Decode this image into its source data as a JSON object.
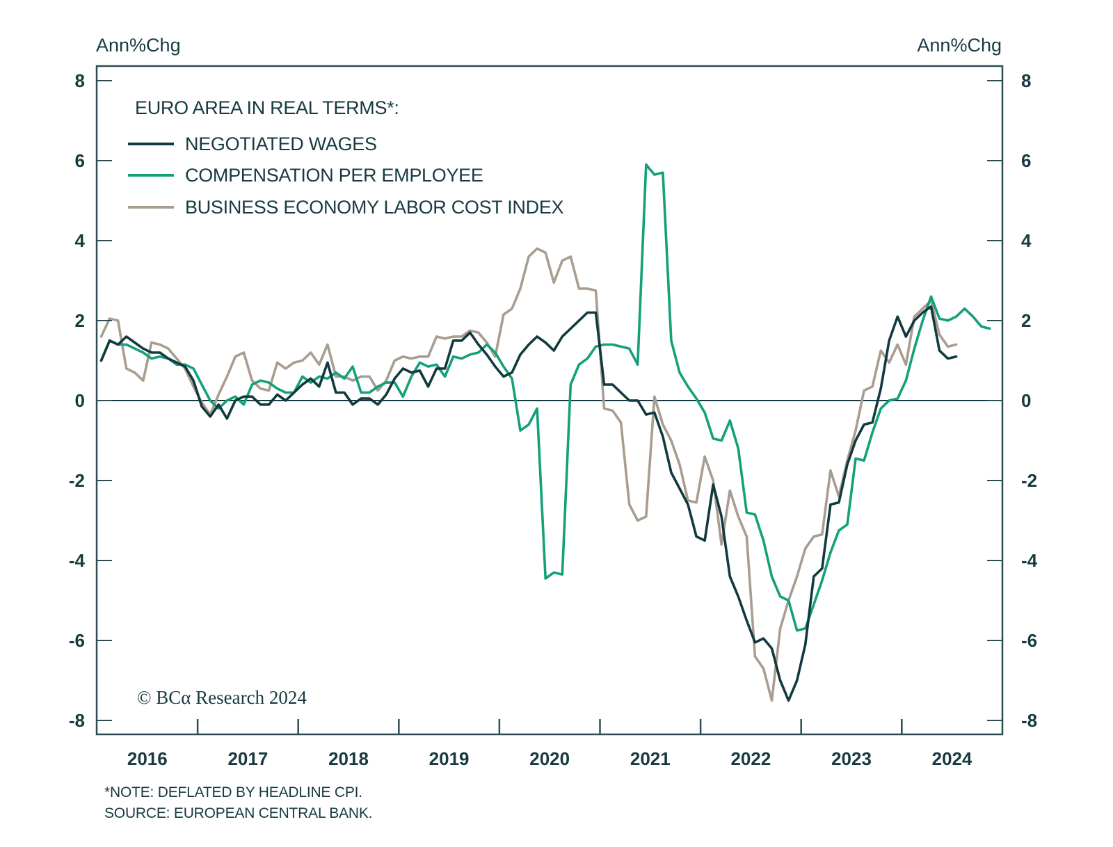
{
  "chart_data": {
    "type": "line",
    "title": "EURO AREA IN REAL TERMS*:",
    "ylabel_left": "Ann%Chg",
    "ylabel_right": "Ann%Chg",
    "xlabel": "",
    "ylim": [
      -8,
      8
    ],
    "yticks": [
      -8,
      -6,
      -4,
      -2,
      0,
      2,
      4,
      6,
      8
    ],
    "x_start": "2016-01",
    "x_frequency": "monthly",
    "xlim_years": [
      2016,
      2025
    ],
    "xtick_labels": [
      "2016",
      "2017",
      "2018",
      "2019",
      "2020",
      "2021",
      "2022",
      "2023",
      "2024"
    ],
    "zero_line": true,
    "grid": false,
    "legend_position": "top-left",
    "series": [
      {
        "name": "NEGOTIATED WAGES",
        "color": "#12393f",
        "values": [
          1.0,
          1.5,
          1.4,
          1.6,
          1.45,
          1.3,
          1.2,
          1.2,
          1.05,
          0.95,
          0.85,
          0.5,
          -0.15,
          -0.4,
          -0.1,
          -0.45,
          0.0,
          0.1,
          0.1,
          -0.1,
          -0.1,
          0.15,
          0.0,
          0.2,
          0.4,
          0.55,
          0.35,
          0.95,
          0.2,
          0.2,
          -0.1,
          0.05,
          0.05,
          -0.1,
          0.15,
          0.55,
          0.8,
          0.7,
          0.75,
          0.35,
          0.8,
          0.8,
          1.5,
          1.5,
          1.7,
          1.4,
          1.15,
          0.85,
          0.6,
          0.7,
          1.15,
          1.4,
          1.6,
          1.45,
          1.25,
          1.6,
          1.8,
          2.0,
          2.2,
          2.2,
          0.4,
          0.4,
          0.2,
          0.0,
          0.0,
          -0.35,
          -0.3,
          -0.9,
          -1.8,
          -2.2,
          -2.6,
          -3.4,
          -3.5,
          -2.1,
          -2.9,
          -4.4,
          -4.9,
          -5.5,
          -6.05,
          -5.95,
          -6.2,
          -7.0,
          -7.5,
          -7.0,
          -6.1,
          -4.4,
          -4.2,
          -2.6,
          -2.55,
          -1.6,
          -1.0,
          -0.6,
          -0.55,
          0.3,
          1.5,
          2.1,
          1.6,
          2.0,
          2.2,
          2.35,
          1.25,
          1.05,
          1.1
        ]
      },
      {
        "name": "COMPENSATION PER EMPLOYEE",
        "color": "#14a07a",
        "values": [
          1.0,
          1.5,
          1.4,
          1.4,
          1.3,
          1.2,
          1.05,
          1.1,
          1.05,
          0.9,
          0.9,
          0.8,
          0.4,
          0.0,
          -0.2,
          0.0,
          0.1,
          -0.1,
          0.4,
          0.5,
          0.45,
          0.3,
          0.2,
          0.2,
          0.6,
          0.45,
          0.6,
          0.55,
          0.7,
          0.55,
          0.85,
          0.2,
          0.2,
          0.35,
          0.45,
          0.45,
          0.1,
          0.6,
          0.95,
          0.85,
          0.9,
          0.6,
          1.1,
          1.05,
          1.15,
          1.2,
          1.4,
          1.2,
          0.85,
          0.55,
          -0.75,
          -0.6,
          -0.2,
          -4.45,
          -4.3,
          -4.35,
          0.4,
          0.9,
          1.05,
          1.35,
          1.4,
          1.4,
          1.35,
          1.3,
          0.9,
          5.9,
          5.65,
          5.7,
          1.5,
          0.7,
          0.35,
          0.05,
          -0.3,
          -0.95,
          -1.0,
          -0.5,
          -1.2,
          -2.8,
          -2.85,
          -3.5,
          -4.4,
          -4.9,
          -5.0,
          -5.75,
          -5.7,
          -5.1,
          -4.5,
          -3.8,
          -3.25,
          -3.1,
          -1.45,
          -1.5,
          -0.8,
          -0.2,
          0.0,
          0.05,
          0.5,
          1.3,
          2.0,
          2.6,
          2.05,
          2.0,
          2.1,
          2.3,
          2.1,
          1.85,
          1.8
        ]
      },
      {
        "name": "BUSINESS ECONOMY LABOR COST INDEX",
        "color": "#a89d90",
        "values": [
          1.6,
          2.05,
          2.0,
          0.8,
          0.7,
          0.5,
          1.45,
          1.4,
          1.3,
          1.05,
          0.8,
          0.35,
          -0.05,
          -0.35,
          0.15,
          0.6,
          1.1,
          1.2,
          0.5,
          0.3,
          0.25,
          0.95,
          0.8,
          0.95,
          1.0,
          1.2,
          0.9,
          1.4,
          0.6,
          0.6,
          0.5,
          0.6,
          0.6,
          0.25,
          0.5,
          1.0,
          1.1,
          1.05,
          1.1,
          1.1,
          1.6,
          1.55,
          1.6,
          1.6,
          1.75,
          1.7,
          1.45,
          1.1,
          2.15,
          2.3,
          2.8,
          3.6,
          3.8,
          3.7,
          2.95,
          3.5,
          3.6,
          2.8,
          2.8,
          2.75,
          -0.2,
          -0.25,
          -0.55,
          -2.6,
          -3.0,
          -2.9,
          0.1,
          -0.6,
          -1.0,
          -1.6,
          -2.5,
          -2.55,
          -1.4,
          -2.0,
          -3.6,
          -2.25,
          -2.9,
          -3.4,
          -6.4,
          -6.7,
          -7.5,
          -5.7,
          -5.0,
          -4.4,
          -3.7,
          -3.4,
          -3.35,
          -1.75,
          -2.4,
          -1.5,
          -0.75,
          0.25,
          0.35,
          1.25,
          0.95,
          1.4,
          0.9,
          2.1,
          2.3,
          2.5,
          1.65,
          1.35,
          1.4
        ]
      }
    ],
    "annotations": [
      "© BCA Research 2024"
    ]
  },
  "legend": {
    "title": "EURO AREA IN REAL TERMS*:",
    "items": [
      "NEGOTIATED WAGES",
      "COMPENSATION PER EMPLOYEE",
      "BUSINESS ECONOMY LABOR COST INDEX"
    ]
  },
  "axis": {
    "left_unit": "Ann%Chg",
    "right_unit": "Ann%Chg"
  },
  "copyright": "© BCα Research 2024",
  "footnotes": {
    "note": "*NOTE: DEFLATED BY HEADLINE CPI.",
    "source": "SOURCE: EUROPEAN CENTRAL BANK."
  }
}
